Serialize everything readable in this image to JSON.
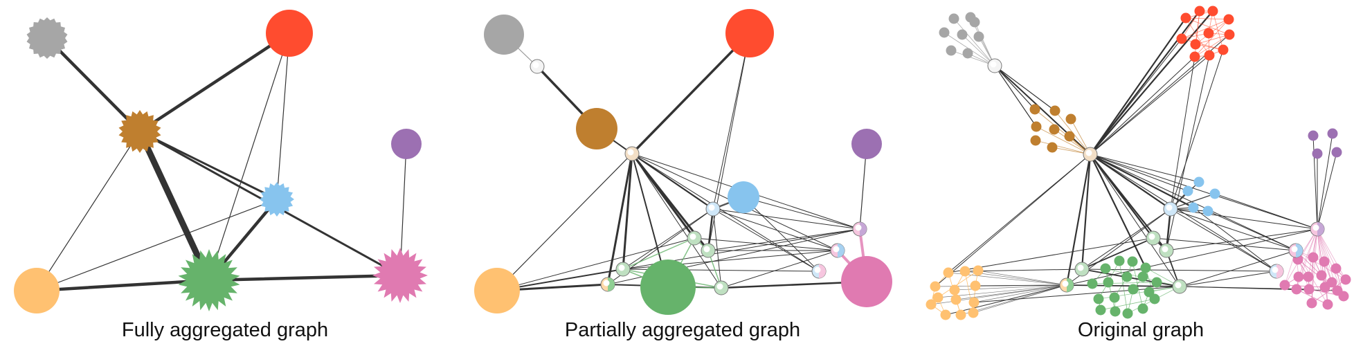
{
  "figure": {
    "panel_titles": {
      "fully": "Fully aggregated graph",
      "partial": "Partially aggregated graph",
      "original": "Original graph"
    }
  },
  "colors": {
    "gray": "#a6a6a6",
    "red": "#ff4c2f",
    "brown": "#bf7f2f",
    "purple": "#9c70b2",
    "blue": "#87c4ee",
    "orange": "#ffc171",
    "green": "#66b36b",
    "pink": "#e07ab1",
    "edge": "#333333",
    "bridge": "#f4f4f4"
  },
  "panels": {
    "fully": {
      "name": "fully-aggregated-graph",
      "clusters": [
        "gray",
        "red",
        "brown",
        "purple",
        "blue",
        "orange",
        "green",
        "pink"
      ],
      "spiky_clusters": [
        "gray",
        "brown",
        "blue",
        "green",
        "pink"
      ],
      "edges": [
        [
          "gray",
          "brown",
          "heavy"
        ],
        [
          "red",
          "brown",
          "heavy"
        ],
        [
          "brown",
          "green",
          "heaviest"
        ],
        [
          "brown",
          "blue",
          "medium"
        ],
        [
          "brown",
          "pink",
          "medium"
        ],
        [
          "brown",
          "orange",
          "light"
        ],
        [
          "red",
          "blue",
          "light"
        ],
        [
          "red",
          "green",
          "light"
        ],
        [
          "blue",
          "green",
          "heavy"
        ],
        [
          "purple",
          "pink",
          "light"
        ],
        [
          "orange",
          "green",
          "heavy"
        ],
        [
          "green",
          "pink",
          "heavy"
        ],
        [
          "orange",
          "blue",
          "light"
        ]
      ]
    },
    "partial": {
      "name": "partially-aggregated-graph",
      "clusters": [
        "gray",
        "red",
        "brown",
        "purple",
        "blue",
        "orange",
        "green",
        "pink"
      ],
      "bridges": 12
    },
    "original": {
      "name": "original-graph",
      "clusters": [
        "gray",
        "red",
        "brown",
        "purple",
        "blue",
        "orange",
        "green",
        "pink"
      ],
      "cluster_sizes": {
        "gray": 8,
        "red": 11,
        "brown": 7,
        "purple": 4,
        "blue": 5,
        "orange": 13,
        "green": 18,
        "pink": 14
      },
      "bridges": 12
    }
  }
}
